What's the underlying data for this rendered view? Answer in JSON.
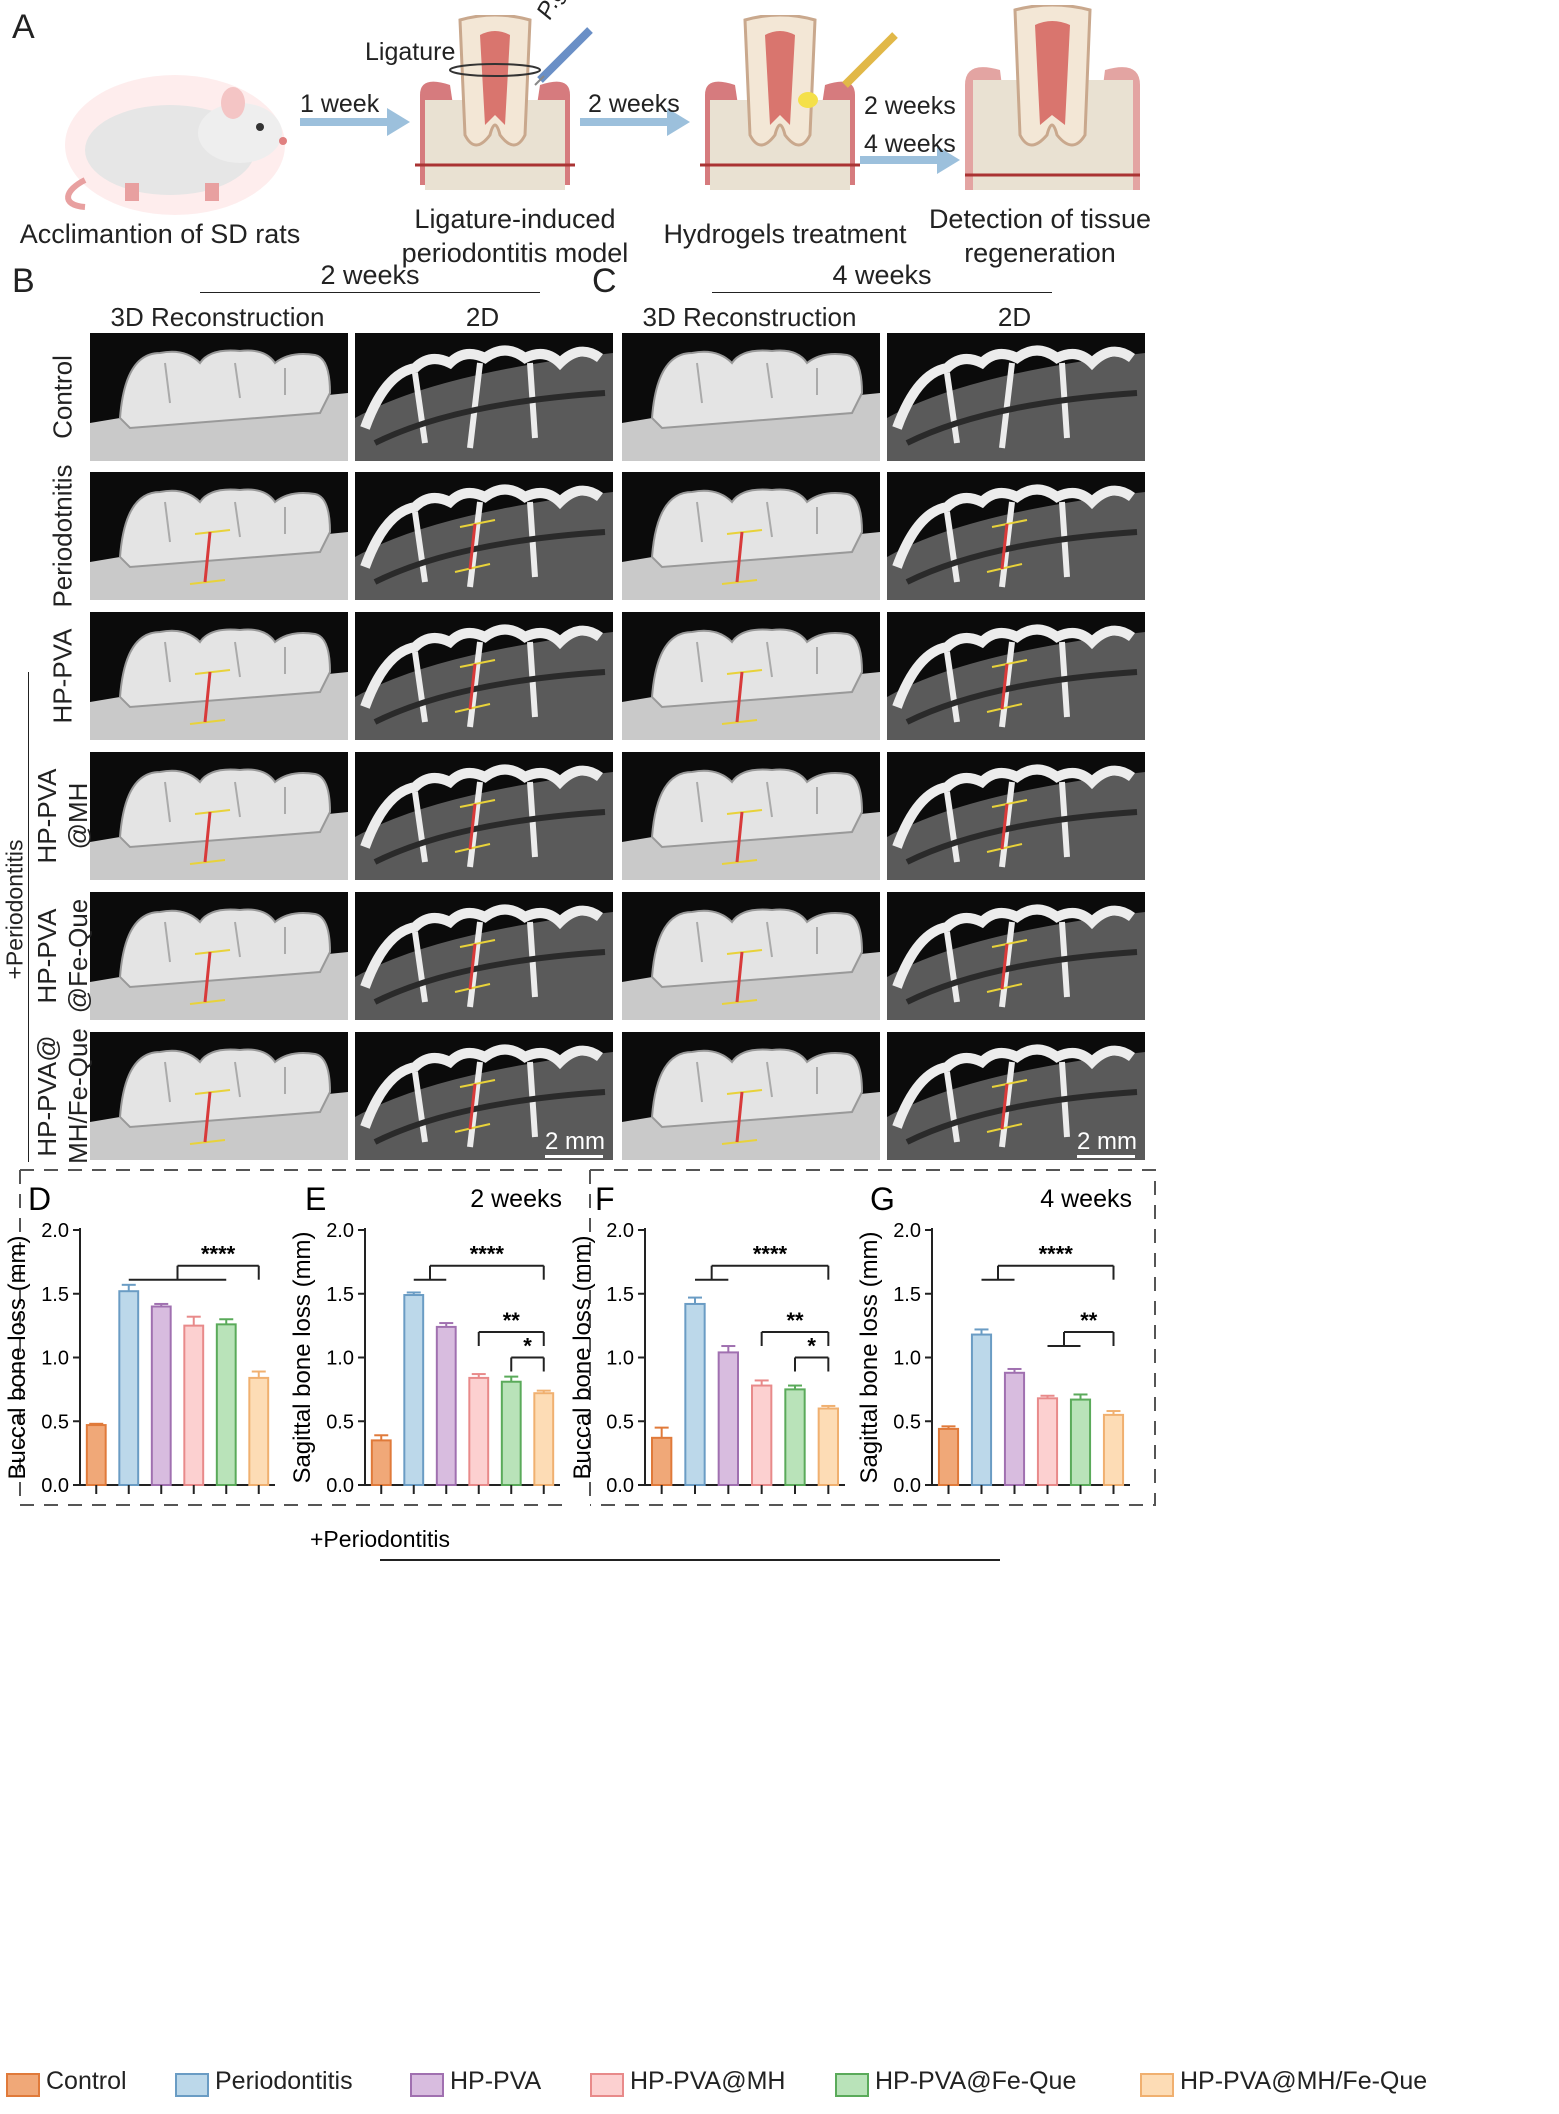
{
  "panel_a": {
    "label": "A",
    "ligature": "Ligature",
    "pathogen": "P.gingivalis",
    "arrow1": "1 week",
    "arrow2": "2 weeks",
    "arrow3a": "2 weeks",
    "arrow3b": "4 weeks",
    "step1": "Acclimantion of SD rats",
    "step2a": "Ligature-induced",
    "step2b": "periodontitis model",
    "step3": "Hydrogels treatment",
    "step4a": "Detection of tissue",
    "step4b": "regeneration"
  },
  "panel_b": {
    "label": "B",
    "period": "2 weeks",
    "col1": "3D Reconstruction",
    "col2": "2D"
  },
  "panel_c": {
    "label": "C",
    "period": "4 weeks",
    "col1": "3D Reconstruction",
    "col2": "2D"
  },
  "rows": [
    "Control",
    "Periodotnitis",
    "HP-PVA",
    "HP-PVA @MH",
    "HP-PVA @Fe-Que",
    "HP-PVA@ MH/Fe-Que"
  ],
  "row_lines": [
    [
      "Control"
    ],
    [
      "Periodotnitis"
    ],
    [
      "HP-PVA"
    ],
    [
      "HP-PVA",
      "@MH"
    ],
    [
      "HP-PVA",
      "@Fe-Que"
    ],
    [
      "HP-PVA@",
      "MH/Fe-Que"
    ]
  ],
  "periodontitis_bracket": "+Periodontitis",
  "scalebar": "2 mm",
  "colors": {
    "control": "#f0a878",
    "control_edge": "#e07a3a",
    "periodontitis": "#bcd8ea",
    "periodontitis_edge": "#6a9cc4",
    "hppva": "#d8bcdf",
    "hppva_edge": "#a070b0",
    "hppva_mh": "#fcd0d0",
    "hppva_mh_edge": "#e88a8a",
    "hppva_feque": "#b9e3b9",
    "hppva_feque_edge": "#5aaa5a",
    "hppva_mhfeque": "#fddcb5",
    "hppva_mhfeque_edge": "#f0b070"
  },
  "legend": [
    "Control",
    "Periodontitis",
    "HP-PVA",
    "HP-PVA@MH",
    "HP-PVA@Fe-Que",
    "HP-PVA@MH/Fe-Que"
  ],
  "legend_bracket": "+Periodontitis",
  "chart_data": [
    {
      "panel": "D",
      "type": "bar",
      "title": "",
      "ylabel": "Buccal bone loss (mm)",
      "ylim": [
        0,
        2.0
      ],
      "yticks": [
        "0.0",
        "0.5",
        "1.0",
        "1.5",
        "2.0"
      ],
      "categories": [
        "Control",
        "Periodontitis",
        "HP-PVA",
        "HP-PVA@MH",
        "HP-PVA@Fe-Que",
        "HP-PVA@MH/Fe-Que"
      ],
      "values": [
        0.47,
        1.52,
        1.4,
        1.25,
        1.26,
        0.84
      ],
      "errors": [
        0.01,
        0.05,
        0.02,
        0.07,
        0.04,
        0.05
      ],
      "sig": [
        {
          "from": [
            1,
            4
          ],
          "to": 5,
          "label": "****"
        }
      ]
    },
    {
      "panel": "E",
      "type": "bar",
      "title": "2 weeks",
      "ylabel": "Sagittal bone loss (mm)",
      "ylim": [
        0,
        2.0
      ],
      "yticks": [
        "0.0",
        "0.5",
        "1.0",
        "1.5",
        "2.0"
      ],
      "categories": [
        "Control",
        "Periodontitis",
        "HP-PVA",
        "HP-PVA@MH",
        "HP-PVA@Fe-Que",
        "HP-PVA@MH/Fe-Que"
      ],
      "values": [
        0.35,
        1.49,
        1.24,
        0.84,
        0.81,
        0.72
      ],
      "errors": [
        0.04,
        0.02,
        0.03,
        0.03,
        0.04,
        0.02
      ],
      "sig": [
        {
          "from": [
            1,
            2
          ],
          "to": 5,
          "label": "****"
        },
        {
          "from": [
            3,
            3
          ],
          "to": 5,
          "label": "**"
        },
        {
          "from": [
            4,
            4
          ],
          "to": 5,
          "label": "*"
        }
      ]
    },
    {
      "panel": "F",
      "type": "bar",
      "title": "",
      "ylabel": "Buccal bone loss (mm)",
      "ylim": [
        0,
        2.0
      ],
      "yticks": [
        "0.0",
        "0.5",
        "1.0",
        "1.5",
        "2.0"
      ],
      "categories": [
        "Control",
        "Periodontitis",
        "HP-PVA",
        "HP-PVA@MH",
        "HP-PVA@Fe-Que",
        "HP-PVA@MH/Fe-Que"
      ],
      "values": [
        0.37,
        1.42,
        1.04,
        0.78,
        0.75,
        0.6
      ],
      "errors": [
        0.08,
        0.05,
        0.05,
        0.04,
        0.03,
        0.02
      ],
      "sig": [
        {
          "from": [
            1,
            2
          ],
          "to": 5,
          "label": "****"
        },
        {
          "from": [
            3,
            3
          ],
          "to": 5,
          "label": "**"
        },
        {
          "from": [
            4,
            4
          ],
          "to": 5,
          "label": "*"
        }
      ]
    },
    {
      "panel": "G",
      "type": "bar",
      "title": "4 weeks",
      "ylabel": "Sagittal bone loss (mm)",
      "ylim": [
        0,
        2.0
      ],
      "yticks": [
        "0.0",
        "0.5",
        "1.0",
        "1.5",
        "2.0"
      ],
      "categories": [
        "Control",
        "Periodontitis",
        "HP-PVA",
        "HP-PVA@MH",
        "HP-PVA@Fe-Que",
        "HP-PVA@MH/Fe-Que"
      ],
      "values": [
        0.44,
        1.18,
        0.88,
        0.68,
        0.67,
        0.55
      ],
      "errors": [
        0.02,
        0.04,
        0.03,
        0.02,
        0.04,
        0.03
      ],
      "sig": [
        {
          "from": [
            1,
            2
          ],
          "to": 5,
          "label": "****"
        },
        {
          "from": [
            3,
            4
          ],
          "to": 5,
          "label": "**"
        }
      ]
    }
  ]
}
